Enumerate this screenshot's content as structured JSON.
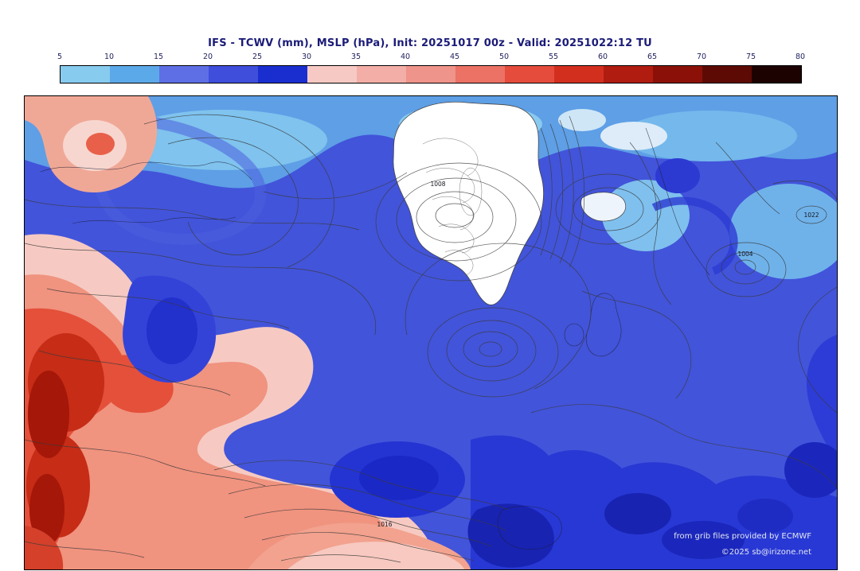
{
  "header": {
    "title": "IFS - TCWV (mm), MSLP (hPa), Init: 20251017 00z - Valid: 20251022:12 TU"
  },
  "colorbar": {
    "ticks": [
      "5",
      "10",
      "15",
      "20",
      "25",
      "30",
      "35",
      "40",
      "45",
      "50",
      "55",
      "60",
      "65",
      "70",
      "75",
      "80"
    ],
    "segment_colors": [
      "#87cbee",
      "#5ca9e9",
      "#5e6fe6",
      "#3f4edb",
      "#1a2ed0",
      "#f6c9c4",
      "#f3afa7",
      "#ef948a",
      "#eb7265",
      "#e54c3c",
      "#d32f1f",
      "#b01c10",
      "#8b1108",
      "#5e0a04",
      "#1c0200"
    ]
  },
  "map": {
    "contour_labels": [
      {
        "text": "1008"
      },
      {
        "text": "1022"
      },
      {
        "text": "1004"
      },
      {
        "text": "1016"
      }
    ],
    "attribution_line1": "from grib files provided by ECMWF",
    "attribution_line2": "©2025 sb@irizone.net"
  }
}
